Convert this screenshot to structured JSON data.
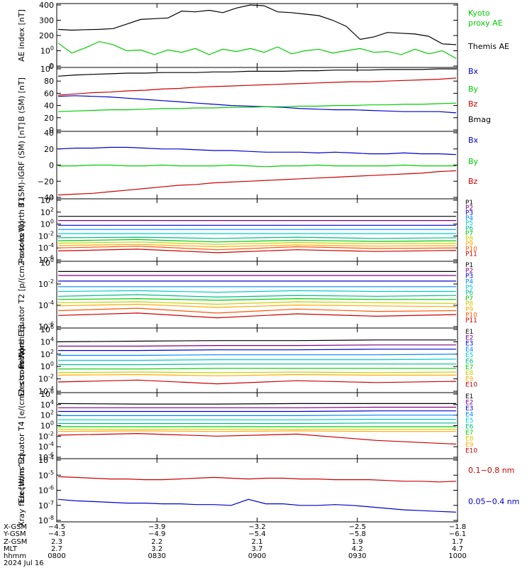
{
  "chart_data": [
    {
      "type": "line",
      "ylabel": "AE index [nT]",
      "ylim": [
        0,
        400
      ],
      "yticks": [
        "0",
        "100",
        "200",
        "300",
        "400"
      ],
      "series": [
        {
          "name": "Themis AE",
          "color": "#000000",
          "values": [
            240,
            235,
            238,
            240,
            245,
            275,
            305,
            310,
            315,
            360,
            355,
            365,
            350,
            380,
            400,
            395,
            355,
            350,
            340,
            330,
            300,
            260,
            175,
            190,
            220,
            215,
            210,
            195,
            145,
            140
          ]
        },
        {
          "name": "Kyoto proxy AE",
          "color": "#00cc00",
          "values": [
            150,
            85,
            120,
            160,
            140,
            100,
            105,
            75,
            105,
            90,
            115,
            75,
            110,
            95,
            115,
            90,
            125,
            80,
            100,
            110,
            85,
            100,
            115,
            90,
            95,
            75,
            110,
            80,
            100,
            50
          ]
        }
      ],
      "legend": [
        {
          "text": "Kyoto",
          "color": "#00cc00"
        },
        {
          "text": "proxy AE",
          "color": "#00cc00"
        },
        {
          "text": "Themis AE",
          "color": "#000000"
        }
      ]
    },
    {
      "type": "line",
      "ylabel": "B (SM) [nT]",
      "ylim": [
        0,
        100
      ],
      "yticks": [
        "0",
        "20",
        "40",
        "60",
        "80",
        "100"
      ],
      "series": [
        {
          "name": "Bx",
          "color": "#0000cc",
          "values": [
            55,
            56,
            55,
            54,
            52,
            50,
            48,
            46,
            44,
            42,
            40,
            39,
            38,
            37,
            35,
            34,
            33,
            33,
            32,
            31,
            30,
            30,
            30,
            28
          ]
        },
        {
          "name": "By",
          "color": "#00cc00",
          "values": [
            30,
            31,
            32,
            33,
            33,
            34,
            35,
            35,
            36,
            36,
            37,
            37,
            38,
            38,
            39,
            39,
            40,
            40,
            41,
            41,
            42,
            42,
            43,
            44
          ]
        },
        {
          "name": "Bz",
          "color": "#cc0000",
          "values": [
            57,
            59,
            61,
            62,
            64,
            65,
            67,
            68,
            70,
            71,
            72,
            73,
            74,
            75,
            76,
            77,
            78,
            79,
            79,
            80,
            81,
            82,
            83,
            85
          ]
        },
        {
          "name": "Bmag",
          "color": "#000000",
          "values": [
            88,
            90,
            91,
            92,
            93,
            93,
            94,
            94,
            94,
            95,
            95,
            96,
            96,
            96,
            97,
            97,
            98,
            98,
            98,
            99,
            99,
            99,
            100,
            100
          ]
        }
      ],
      "legend": [
        {
          "text": "Bx",
          "color": "#0000cc"
        },
        {
          "text": "By",
          "color": "#00cc00"
        },
        {
          "text": "Bz",
          "color": "#cc0000"
        },
        {
          "text": "Bmag",
          "color": "#000000"
        }
      ]
    },
    {
      "type": "line",
      "ylabel": "B (SM)-IGRF (SM) [nT]",
      "ylim": [
        -40,
        40
      ],
      "yticks": [
        "-40",
        "-20",
        "0",
        "20",
        "40"
      ],
      "series": [
        {
          "name": "Bx",
          "color": "#0000cc",
          "values": [
            20,
            21,
            21,
            22,
            22,
            21,
            20,
            20,
            19,
            18,
            18,
            17,
            16,
            16,
            16,
            15,
            16,
            15,
            14,
            14,
            15,
            14,
            14,
            13
          ]
        },
        {
          "name": "By",
          "color": "#00cc00",
          "values": [
            -1,
            -1,
            0,
            0,
            -1,
            -1,
            0,
            -1,
            -1,
            -1,
            0,
            -1,
            -2,
            -1,
            -1,
            0,
            -1,
            -1,
            -1,
            -1,
            0,
            -1,
            -1,
            -1
          ]
        },
        {
          "name": "Bz",
          "color": "#cc0000",
          "values": [
            -37,
            -36,
            -35,
            -33,
            -31,
            -29,
            -27,
            -25,
            -24,
            -22,
            -21,
            -20,
            -19,
            -18,
            -17,
            -16,
            -15,
            -14,
            -13,
            -12,
            -11,
            -10,
            -8,
            -7
          ]
        }
      ],
      "legend": [
        {
          "text": "Bx",
          "color": "#0000cc"
        },
        {
          "text": "By",
          "color": "#00cc00"
        },
        {
          "text": "Bz",
          "color": "#cc0000"
        }
      ]
    },
    {
      "type": "line",
      "ylabel": "Protons North T1",
      "log": true,
      "ylim": [
        -6,
        4
      ],
      "yticks": [
        "10-6",
        "10-4",
        "10-2",
        "100",
        "102",
        "104"
      ],
      "series": [
        {
          "name": "P1",
          "color": "#000000",
          "values": [
            1.3,
            1.3,
            1.3,
            1.3,
            1.3,
            1.3
          ]
        },
        {
          "name": "P2",
          "color": "#800080",
          "values": [
            0.6,
            0.6,
            0.6,
            0.6,
            0.6,
            0.6
          ]
        },
        {
          "name": "P3",
          "color": "#0000cc",
          "values": [
            -0.2,
            -0.2,
            -0.2,
            -0.2,
            -0.2,
            -0.2
          ]
        },
        {
          "name": "P4",
          "color": "#0088ff",
          "values": [
            -0.9,
            -0.9,
            -0.9,
            -0.9,
            -0.9,
            -0.9
          ]
        },
        {
          "name": "P5",
          "color": "#00cccc",
          "values": [
            -1.6,
            -1.6,
            -1.6,
            -1.6,
            -1.6,
            -1.6
          ]
        },
        {
          "name": "P6",
          "color": "#00bb88",
          "values": [
            -2.3,
            -2.2,
            -2.4,
            -2.2,
            -2.4,
            -2.3
          ]
        },
        {
          "name": "P7",
          "color": "#00cc00",
          "values": [
            -2.8,
            -2.6,
            -3.0,
            -2.7,
            -2.9,
            -2.8
          ]
        },
        {
          "name": "P8",
          "color": "#cccc00",
          "values": [
            -3.2,
            -3.0,
            -3.4,
            -3.1,
            -3.3,
            -3.2
          ]
        },
        {
          "name": "P9",
          "color": "#ffaa00",
          "values": [
            -3.6,
            -3.4,
            -3.8,
            -3.5,
            -3.7,
            -3.6
          ]
        },
        {
          "name": "P10",
          "color": "#ff5500",
          "values": [
            -4.0,
            -3.7,
            -4.3,
            -3.8,
            -4.1,
            -4.0
          ]
        },
        {
          "name": "P11",
          "color": "#cc0000",
          "values": [
            -4.5,
            -4.2,
            -4.8,
            -4.3,
            -4.6,
            -4.4
          ]
        }
      ]
    },
    {
      "type": "line",
      "ylabel": "Protons Equator T2 [p/(cm2-s-sr-keV)]",
      "log": true,
      "ylim": [
        -6,
        2
      ],
      "yticks": [
        "10-6",
        "10-4",
        "10-2",
        "100"
      ],
      "series": [
        {
          "name": "P1",
          "color": "#000000",
          "values": [
            0.9,
            0.9,
            0.9,
            0.9,
            0.9,
            0.9
          ]
        },
        {
          "name": "P2",
          "color": "#800080",
          "values": [
            0.4,
            0.4,
            0.4,
            0.4,
            0.4,
            0.4
          ]
        },
        {
          "name": "P3",
          "color": "#0000cc",
          "values": [
            -0.3,
            -0.3,
            -0.3,
            -0.3,
            -0.3,
            -0.3
          ]
        },
        {
          "name": "P4",
          "color": "#0088ff",
          "values": [
            -1.0,
            -1.0,
            -1.0,
            -1.0,
            -1.0,
            -1.0
          ]
        },
        {
          "name": "P5",
          "color": "#00cccc",
          "values": [
            -1.6,
            -1.5,
            -1.7,
            -1.5,
            -1.6,
            -1.6
          ]
        },
        {
          "name": "P6",
          "color": "#00bb88",
          "values": [
            -2.2,
            -2.0,
            -2.3,
            -2.1,
            -2.2,
            -2.1
          ]
        },
        {
          "name": "P7",
          "color": "#00cc00",
          "values": [
            -2.6,
            -2.5,
            -2.7,
            -2.5,
            -2.6,
            -2.6
          ]
        },
        {
          "name": "P8",
          "color": "#cccc00",
          "values": [
            -3.0,
            -2.9,
            -3.2,
            -2.9,
            -3.0,
            -3.1
          ]
        },
        {
          "name": "P9",
          "color": "#ffaa00",
          "values": [
            -3.4,
            -3.2,
            -3.6,
            -3.3,
            -3.4,
            -3.5
          ]
        },
        {
          "name": "P10",
          "color": "#ff5500",
          "values": [
            -4.0,
            -3.7,
            -4.3,
            -3.8,
            -4.1,
            -4.0
          ]
        },
        {
          "name": "P11",
          "color": "#cc0000",
          "values": [
            -4.6,
            -4.3,
            -4.9,
            -4.4,
            -4.7,
            -4.5
          ]
        }
      ]
    },
    {
      "type": "line",
      "ylabel": "Electrons North T3",
      "log": true,
      "ylim": [
        -4,
        6
      ],
      "yticks": [
        "10-4",
        "10-2",
        "100",
        "102",
        "104",
        "106"
      ],
      "series": [
        {
          "name": "E1",
          "color": "#000000",
          "values": [
            4.0,
            4.1,
            4.2,
            4.2,
            4.3,
            4.3
          ]
        },
        {
          "name": "E2",
          "color": "#800080",
          "values": [
            3.3,
            3.3,
            3.4,
            3.4,
            3.5,
            3.5
          ]
        },
        {
          "name": "E3",
          "color": "#0000cc",
          "values": [
            2.6,
            2.6,
            2.7,
            2.7,
            2.8,
            2.8
          ]
        },
        {
          "name": "E4",
          "color": "#0088ff",
          "values": [
            1.8,
            1.8,
            1.9,
            1.9,
            1.9,
            2.0
          ]
        },
        {
          "name": "E5",
          "color": "#00cccc",
          "values": [
            1.0,
            1.0,
            1.1,
            1.1,
            1.1,
            1.2
          ]
        },
        {
          "name": "E6",
          "color": "#00bb88",
          "values": [
            0.3,
            0.3,
            0.4,
            0.4,
            0.4,
            0.4
          ]
        },
        {
          "name": "E7",
          "color": "#00cc00",
          "values": [
            -0.4,
            -0.4,
            -0.3,
            -0.3,
            -0.3,
            -0.3
          ]
        },
        {
          "name": "E8",
          "color": "#cccc00",
          "values": [
            -1.0,
            -0.9,
            -1.0,
            -0.9,
            -1.0,
            -0.9
          ]
        },
        {
          "name": "E9",
          "color": "#ffaa00",
          "values": [
            -1.4,
            -1.3,
            -1.5,
            -1.3,
            -1.4,
            -1.4
          ]
        },
        {
          "name": "E10",
          "color": "#cc0000",
          "values": [
            -2.5,
            -2.2,
            -2.8,
            -2.3,
            -2.6,
            -2.4
          ]
        }
      ]
    },
    {
      "type": "line",
      "ylabel": "Electrons Equator T4 [e/(cm2-s-sr-keV)]",
      "log": true,
      "ylim": [
        -6,
        6
      ],
      "yticks": [
        "10-6",
        "10-4",
        "10-2",
        "100",
        "102",
        "104",
        "106"
      ],
      "series": [
        {
          "name": "E1",
          "color": "#000000",
          "values": [
            4.2,
            4.1,
            4.1,
            4.2,
            4.2,
            4.2
          ]
        },
        {
          "name": "E2",
          "color": "#800080",
          "values": [
            3.4,
            3.4,
            3.4,
            3.4,
            3.5,
            3.5
          ]
        },
        {
          "name": "E3",
          "color": "#0000cc",
          "values": [
            2.7,
            2.7,
            2.7,
            2.7,
            2.8,
            2.8
          ]
        },
        {
          "name": "E4",
          "color": "#0088ff",
          "values": [
            1.9,
            1.9,
            1.9,
            1.9,
            2.0,
            2.0
          ]
        },
        {
          "name": "E5",
          "color": "#00cccc",
          "values": [
            1.1,
            1.1,
            1.1,
            1.1,
            1.2,
            1.2
          ]
        },
        {
          "name": "E6",
          "color": "#00bb88",
          "values": [
            0.4,
            0.4,
            0.4,
            0.4,
            0.5,
            0.5
          ]
        },
        {
          "name": "E7",
          "color": "#00cc00",
          "values": [
            -0.2,
            -0.2,
            -0.2,
            -0.2,
            -0.2,
            -0.2
          ]
        },
        {
          "name": "E8",
          "color": "#cccc00",
          "values": [
            -0.7,
            -0.7,
            -0.7,
            -0.7,
            -0.7,
            -0.7
          ]
        },
        {
          "name": "E9",
          "color": "#ffaa00",
          "values": [
            -1.1,
            -1.0,
            -1.1,
            -1.0,
            -1.1,
            -1.1
          ]
        },
        {
          "name": "E10",
          "color": "#cc0000",
          "values": [
            -1.8,
            -1.5,
            -2.0,
            -1.6,
            -2.8,
            -3.5
          ]
        }
      ]
    },
    {
      "type": "line",
      "ylabel": "Xray flux [W/m^2]",
      "log": true,
      "ylim": [
        -8,
        -4
      ],
      "yticks": [
        "10-8",
        "10-7",
        "10-6",
        "10-5",
        "10-4"
      ],
      "series": [
        {
          "name": "0.1-0.8 nm",
          "color": "#cc0000",
          "values": [
            -5.1,
            -5.15,
            -5.2,
            -5.25,
            -5.25,
            -5.3,
            -5.3,
            -5.25,
            -5.2,
            -5.15,
            -5.2,
            -5.25,
            -5.2,
            -5.2,
            -5.25,
            -5.25,
            -5.3,
            -5.3,
            -5.3,
            -5.35,
            -5.4,
            -5.4,
            -5.45,
            -5.4
          ]
        },
        {
          "name": "0.05-0.4 nm",
          "color": "#0000cc",
          "values": [
            -6.6,
            -6.7,
            -6.75,
            -6.8,
            -6.85,
            -6.85,
            -6.9,
            -6.9,
            -6.95,
            -6.95,
            -7.0,
            -6.6,
            -6.9,
            -6.9,
            -7.0,
            -7.0,
            -6.95,
            -7.0,
            -7.1,
            -7.2,
            -7.3,
            -7.35,
            -7.4,
            -7.45
          ]
        }
      ],
      "legend": [
        {
          "text": "0.1−0.8 nm",
          "color": "#cc0000"
        },
        {
          "text": "0.05−0.4 nm",
          "color": "#0000cc"
        }
      ]
    }
  ],
  "ephemeris": {
    "labels": [
      "X-GSM",
      "Y-GSM",
      "Z-GSM",
      "MLT",
      "hhmm"
    ],
    "columns": [
      [
        "−4.5",
        "−4.3",
        "2.3",
        "2.7",
        "0800"
      ],
      [
        "−3.9",
        "−4.9",
        "2.2",
        "3.2",
        "0830"
      ],
      [
        "−3.2",
        "−5.4",
        "2.1",
        "3.7",
        "0900"
      ],
      [
        "−2.5",
        "−5.8",
        "1.9",
        "4.2",
        "0930"
      ],
      [
        "−1.8",
        "−6.1",
        "1.7",
        "4.7",
        "1000"
      ]
    ],
    "date": "2024 Jul 16"
  }
}
